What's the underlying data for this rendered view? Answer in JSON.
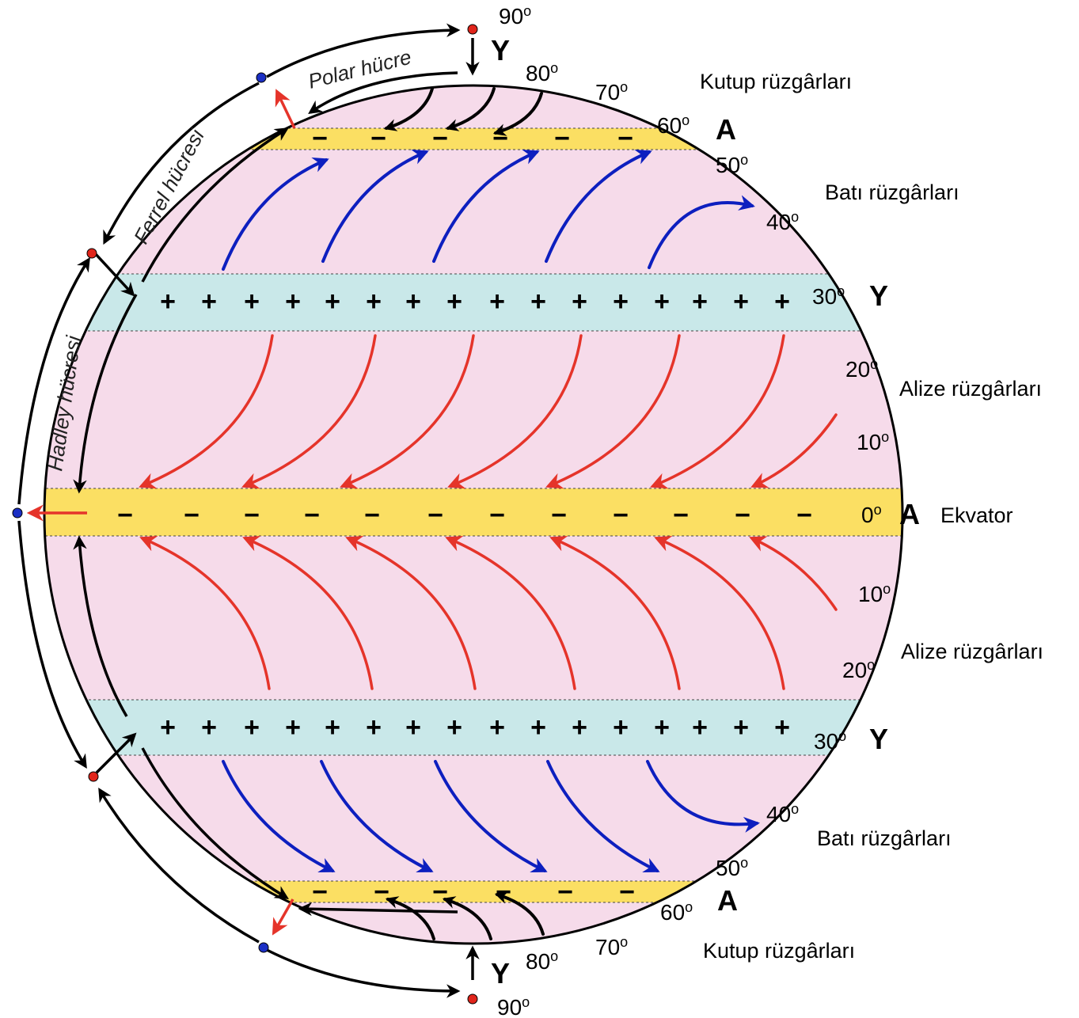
{
  "labels": {
    "lat_north": [
      "90",
      "80",
      "70",
      "60",
      "50",
      "40",
      "30",
      "20",
      "10",
      "0"
    ],
    "lat_south": [
      "10",
      "20",
      "30",
      "40",
      "50",
      "60",
      "70",
      "80",
      "90"
    ],
    "degree_mark": "o",
    "pressure_low": "A",
    "pressure_high": "Y",
    "equator": "Ekvator",
    "polar_winds": "Kutup rüzgârları",
    "westerlies": "Batı rüzgârları",
    "trade_winds": "Alize rüzgârları",
    "polar_cell": "Polar hücre",
    "ferrel_cell": "Ferrel hücresi",
    "hadley_cell": "Hadley hücresi",
    "low_sign": "−",
    "high_sign": "+"
  },
  "colors": {
    "globe": "#f6dbea",
    "low_band": "#fbdf63",
    "high_band": "#c9e8e9",
    "westerly_arrow": "#0d1fbf",
    "trade_arrow": "#e5342a",
    "polar_arrow": "#000000",
    "dot_red": "#e0251b",
    "dot_blue": "#1b2fc4"
  }
}
